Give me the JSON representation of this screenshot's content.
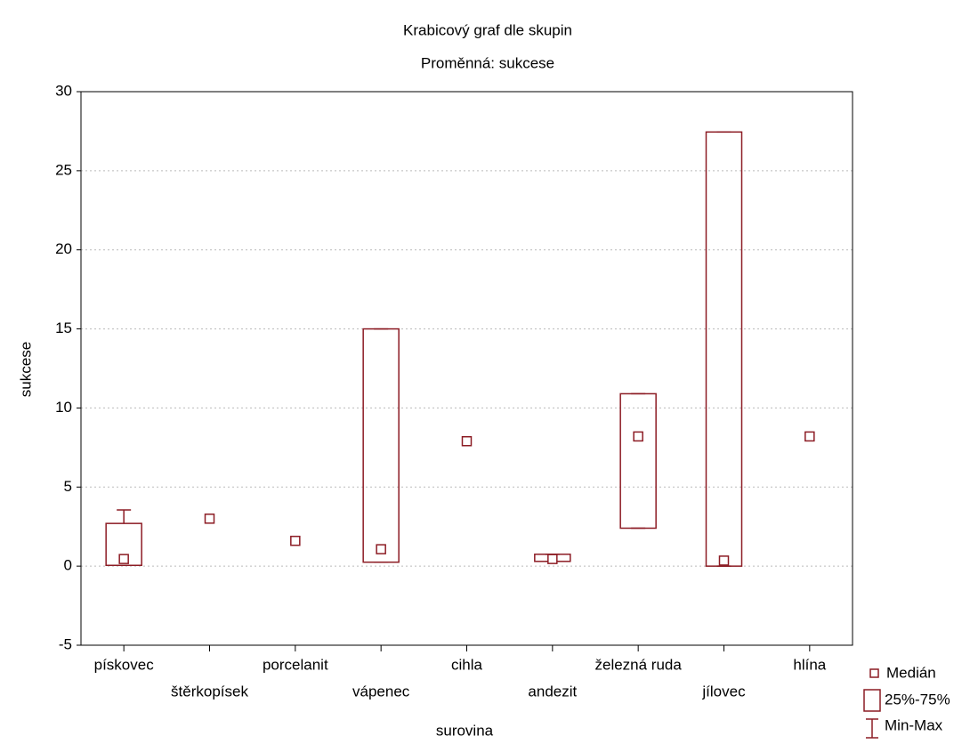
{
  "chart_data": {
    "type": "box",
    "title": "Krabicový graf dle skupin",
    "subtitle": "Proměnná: sukcese",
    "x_label": "surovina",
    "y_label": "sukcese",
    "categories": [
      "pískovec",
      "štěrkopísek",
      "porcelanit",
      "vápenec",
      "cihla",
      "andezit",
      "železná ruda",
      "jílovec",
      "hlína"
    ],
    "median": [
      0.45,
      3.0,
      1.6,
      1.07,
      7.9,
      0.45,
      8.2,
      0.35,
      8.2
    ],
    "q1": [
      0.05,
      null,
      null,
      0.25,
      null,
      0.3,
      2.4,
      0.0,
      null
    ],
    "q3": [
      2.7,
      null,
      null,
      15.0,
      null,
      0.75,
      10.9,
      27.45,
      null
    ],
    "min": [
      0.05,
      null,
      null,
      0.25,
      null,
      0.3,
      2.4,
      0.0,
      null
    ],
    "max": [
      3.55,
      null,
      null,
      15.0,
      null,
      0.75,
      10.9,
      27.45,
      null
    ],
    "legend": [
      "Medián",
      "25%-75%",
      "Min-Max"
    ],
    "color": "#8c1c24",
    "ylim": [
      -5,
      30
    ],
    "yticks": [
      -5,
      0,
      5,
      10,
      15,
      20,
      25,
      30
    ],
    "grid": true
  }
}
